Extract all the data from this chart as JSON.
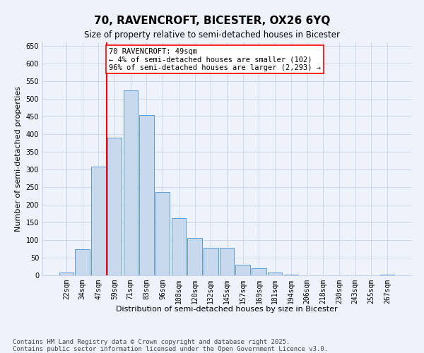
{
  "title": "70, RAVENCROFT, BICESTER, OX26 6YQ",
  "subtitle": "Size of property relative to semi-detached houses in Bicester",
  "xlabel": "Distribution of semi-detached houses by size in Bicester",
  "ylabel": "Number of semi-detached properties",
  "bins": [
    "22sqm",
    "34sqm",
    "47sqm",
    "59sqm",
    "71sqm",
    "83sqm",
    "96sqm",
    "108sqm",
    "120sqm",
    "132sqm",
    "145sqm",
    "157sqm",
    "169sqm",
    "181sqm",
    "194sqm",
    "206sqm",
    "218sqm",
    "230sqm",
    "243sqm",
    "255sqm",
    "267sqm"
  ],
  "values": [
    8,
    75,
    308,
    390,
    525,
    455,
    237,
    163,
    107,
    78,
    78,
    30,
    20,
    8,
    3,
    0,
    0,
    0,
    0,
    0,
    3
  ],
  "bar_color": "#c9d9ed",
  "bar_edge_color": "#5b9bd5",
  "subject_line_bin_index": 2,
  "subject_line_color": "red",
  "annotation_text": "70 RAVENCROFT: 49sqm\n← 4% of semi-detached houses are smaller (102)\n96% of semi-detached houses are larger (2,293) →",
  "annotation_box_color": "white",
  "annotation_box_edge": "red",
  "ylim": [
    0,
    660
  ],
  "yticks": [
    0,
    50,
    100,
    150,
    200,
    250,
    300,
    350,
    400,
    450,
    500,
    550,
    600,
    650
  ],
  "footer_line1": "Contains HM Land Registry data © Crown copyright and database right 2025.",
  "footer_line2": "Contains public sector information licensed under the Open Government Licence v3.0.",
  "bg_color": "#eef2fa",
  "grid_color": "#c8d4e8",
  "title_fontsize": 11,
  "subtitle_fontsize": 8.5,
  "axis_label_fontsize": 8,
  "tick_fontsize": 7,
  "annotation_fontsize": 7.5,
  "footer_fontsize": 6.5
}
